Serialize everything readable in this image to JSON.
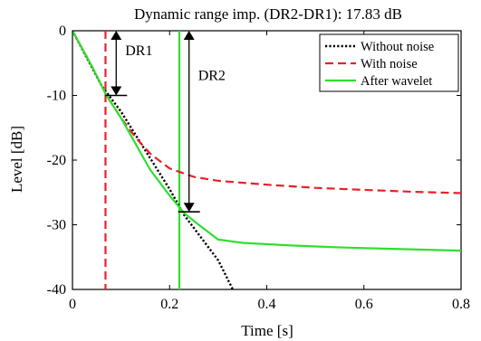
{
  "chart_data": {
    "type": "line",
    "title": "Dynamic range imp. (DR2-DR1):   17.83 dB",
    "xlabel": "Time [s]",
    "ylabel": "Level [dB]",
    "xlim": [
      0,
      0.8
    ],
    "ylim": [
      -40,
      0
    ],
    "xticks": [
      0,
      0.2,
      0.4,
      0.6,
      0.8
    ],
    "xtick_labels": [
      "0",
      "0.2",
      "0.4",
      "0.6",
      "0.8"
    ],
    "yticks": [
      0,
      -10,
      -20,
      -30,
      -40
    ],
    "ytick_labels": [
      "0",
      "-10",
      "-20",
      "-30",
      "-40"
    ],
    "grid": false,
    "legend": {
      "placement": "top-right"
    },
    "series": [
      {
        "name": "Without noise",
        "color": "#000000",
        "style": "dotted",
        "points": [
          [
            0,
            0
          ],
          [
            0.06,
            -8.5
          ],
          [
            0.1,
            -12.5
          ],
          [
            0.15,
            -18.5
          ],
          [
            0.2,
            -24.5
          ],
          [
            0.23,
            -28.5
          ],
          [
            0.26,
            -31.5
          ],
          [
            0.3,
            -35.5
          ],
          [
            0.33,
            -40
          ]
        ]
      },
      {
        "name": "With noise",
        "color": "#e8212a",
        "style": "dashed",
        "points": [
          [
            0,
            0
          ],
          [
            0.04,
            -5.5
          ],
          [
            0.07,
            -10
          ],
          [
            0.1,
            -13.5
          ],
          [
            0.13,
            -16.5
          ],
          [
            0.16,
            -19
          ],
          [
            0.2,
            -21.3
          ],
          [
            0.25,
            -22.6
          ],
          [
            0.3,
            -23.2
          ],
          [
            0.4,
            -23.8
          ],
          [
            0.5,
            -24.3
          ],
          [
            0.6,
            -24.6
          ],
          [
            0.7,
            -24.9
          ],
          [
            0.8,
            -25.1
          ]
        ]
      },
      {
        "name": "After wavelet",
        "color": "#2ee02e",
        "style": "solid",
        "points": [
          [
            0,
            0
          ],
          [
            0.04,
            -5.5
          ],
          [
            0.07,
            -10
          ],
          [
            0.1,
            -13.5
          ],
          [
            0.13,
            -17.5
          ],
          [
            0.16,
            -21.5
          ],
          [
            0.2,
            -25.5
          ],
          [
            0.23,
            -28.2
          ],
          [
            0.26,
            -30
          ],
          [
            0.3,
            -32.3
          ],
          [
            0.35,
            -32.8
          ],
          [
            0.45,
            -33.2
          ],
          [
            0.55,
            -33.5
          ],
          [
            0.65,
            -33.7
          ],
          [
            0.8,
            -34
          ]
        ]
      }
    ],
    "vlines": [
      {
        "x": 0.068,
        "color": "#e8212a",
        "style": "dashed"
      },
      {
        "x": 0.22,
        "color": "#2ee02e",
        "style": "solid"
      }
    ],
    "annotations": [
      {
        "text": "DR1",
        "x": 0.09,
        "y_from": 0,
        "y_to": -10
      },
      {
        "text": "DR2",
        "x": 0.24,
        "y_from": 0,
        "y_to": -28
      }
    ]
  }
}
